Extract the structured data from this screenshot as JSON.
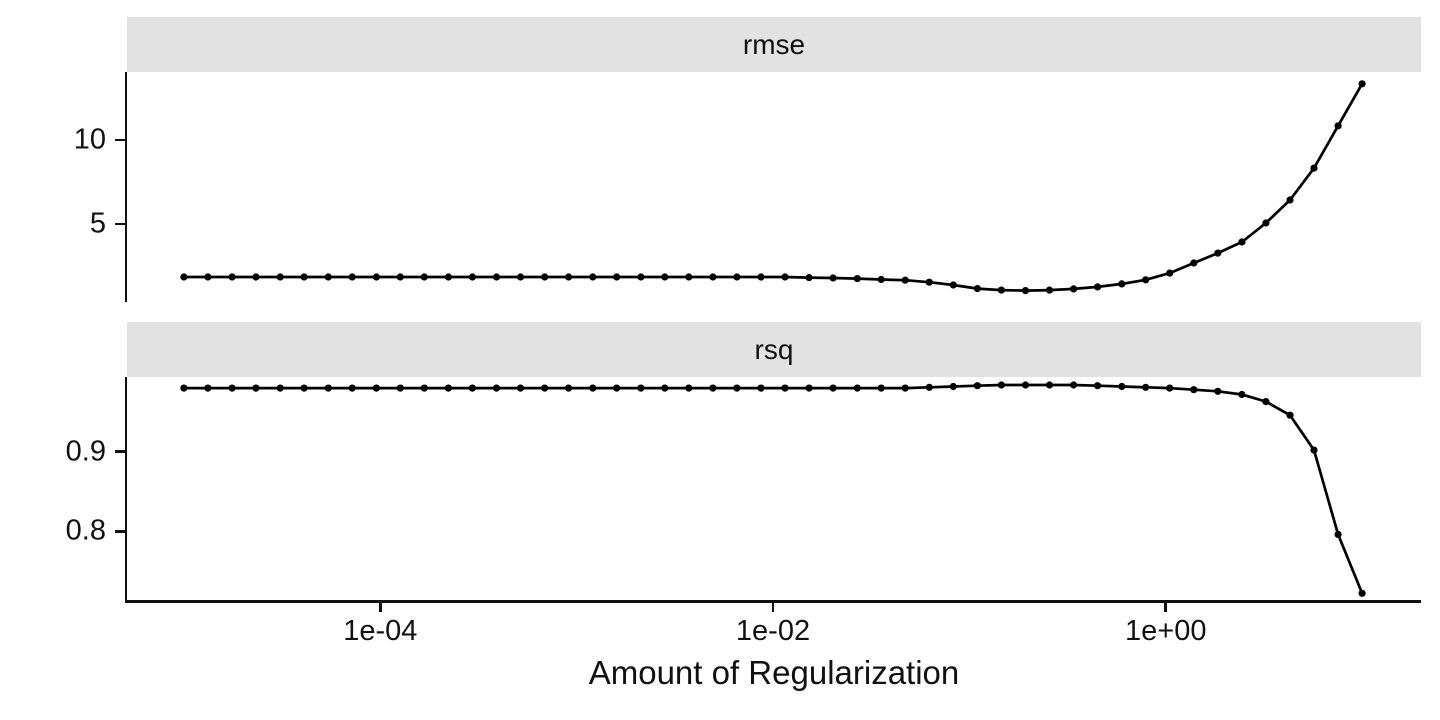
{
  "chart_data": {
    "type": "line",
    "title": "",
    "xlabel": "Amount of Regularization",
    "ylabel": "",
    "x_scale": "log10",
    "grid": "off",
    "legend": "none",
    "n_points": 50,
    "x_range": [
      1e-05,
      10
    ],
    "x_log10_lim": [
      -5.29,
      1.3
    ],
    "x_ticks": [
      {
        "label": "1e-04",
        "log10": -4
      },
      {
        "label": "1e-02",
        "log10": -2
      },
      {
        "label": "1e+00",
        "log10": 0
      }
    ],
    "x_log10": [
      -5.0,
      -4.878,
      -4.755,
      -4.633,
      -4.51,
      -4.388,
      -4.265,
      -4.143,
      -4.02,
      -3.898,
      -3.776,
      -3.653,
      -3.531,
      -3.408,
      -3.286,
      -3.163,
      -3.041,
      -2.918,
      -2.796,
      -2.673,
      -2.551,
      -2.429,
      -2.306,
      -2.184,
      -2.061,
      -1.939,
      -1.816,
      -1.694,
      -1.571,
      -1.449,
      -1.327,
      -1.204,
      -1.082,
      -0.959,
      -0.837,
      -0.714,
      -0.592,
      -0.469,
      -0.347,
      -0.224,
      -0.102,
      0.02,
      0.143,
      0.265,
      0.388,
      0.51,
      0.633,
      0.755,
      0.878,
      1.0
    ],
    "facets": [
      {
        "label": "rmse",
        "ylim": [
          0.36,
          14.05
        ],
        "y_ticks": [
          {
            "label": "5",
            "value": 5
          },
          {
            "label": "10",
            "value": 10
          }
        ],
        "values": [
          1.85,
          1.85,
          1.85,
          1.85,
          1.85,
          1.85,
          1.85,
          1.85,
          1.85,
          1.85,
          1.85,
          1.85,
          1.85,
          1.85,
          1.85,
          1.85,
          1.85,
          1.85,
          1.85,
          1.85,
          1.85,
          1.85,
          1.85,
          1.85,
          1.85,
          1.85,
          1.81,
          1.79,
          1.75,
          1.7,
          1.66,
          1.54,
          1.37,
          1.16,
          1.07,
          1.04,
          1.07,
          1.14,
          1.26,
          1.44,
          1.68,
          2.08,
          2.68,
          3.27,
          3.93,
          5.06,
          6.43,
          8.33,
          10.85,
          13.35
        ]
      },
      {
        "label": "rsq",
        "ylim": [
          0.711,
          0.994
        ],
        "y_ticks": [
          {
            "label": "0.8",
            "value": 0.8
          },
          {
            "label": "0.9",
            "value": 0.9
          }
        ],
        "values": [
          0.98,
          0.98,
          0.98,
          0.98,
          0.98,
          0.98,
          0.98,
          0.98,
          0.98,
          0.98,
          0.98,
          0.98,
          0.98,
          0.98,
          0.98,
          0.98,
          0.98,
          0.98,
          0.98,
          0.98,
          0.98,
          0.98,
          0.98,
          0.98,
          0.98,
          0.98,
          0.98,
          0.98,
          0.98,
          0.98,
          0.98,
          0.981,
          0.982,
          0.983,
          0.984,
          0.984,
          0.984,
          0.984,
          0.983,
          0.982,
          0.981,
          0.98,
          0.978,
          0.976,
          0.972,
          0.963,
          0.946,
          0.902,
          0.796,
          0.722
        ]
      }
    ],
    "colors": {
      "line": "#000000",
      "point": "#000000",
      "strip_bg": "#e2e2e2",
      "axis": "#111111",
      "text": "#111111",
      "background": "#ffffff"
    }
  }
}
